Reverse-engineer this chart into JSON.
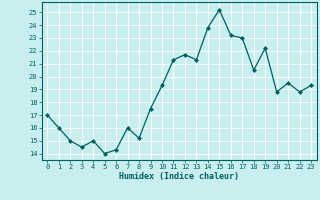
{
  "x": [
    0,
    1,
    2,
    3,
    4,
    5,
    6,
    7,
    8,
    9,
    10,
    11,
    12,
    13,
    14,
    15,
    16,
    17,
    18,
    19,
    20,
    21,
    22,
    23
  ],
  "y": [
    17.0,
    16.0,
    15.0,
    14.5,
    15.0,
    14.0,
    14.3,
    16.0,
    15.2,
    17.5,
    19.3,
    21.3,
    21.7,
    21.3,
    23.8,
    25.2,
    23.2,
    23.0,
    20.5,
    22.2,
    18.8,
    19.5,
    18.8,
    19.3
  ],
  "line_color": "#006060",
  "marker": "D",
  "marker_size": 2,
  "bg_color": "#c8eef0",
  "grid_color": "#ffffff",
  "xlabel": "Humidex (Indice chaleur)",
  "xlim": [
    -0.5,
    23.5
  ],
  "ylim": [
    13.5,
    25.8
  ],
  "yticks": [
    14,
    15,
    16,
    17,
    18,
    19,
    20,
    21,
    22,
    23,
    24,
    25
  ],
  "xticks": [
    0,
    1,
    2,
    3,
    4,
    5,
    6,
    7,
    8,
    9,
    10,
    11,
    12,
    13,
    14,
    15,
    16,
    17,
    18,
    19,
    20,
    21,
    22,
    23
  ]
}
